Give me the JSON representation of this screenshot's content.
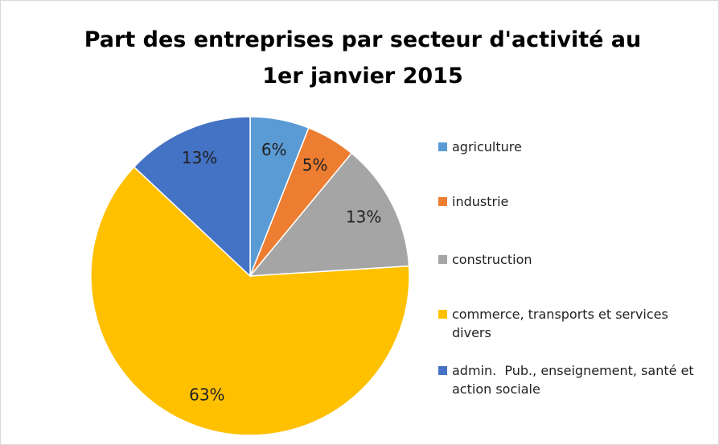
{
  "chart_data": {
    "type": "pie",
    "title": "Part des entreprises par secteur d'activité au 1er janvier 2015",
    "categories": [
      "agriculture",
      "industrie",
      "construction",
      "commerce, transports et services divers",
      "admin.  Pub., enseignement, santé et action sociale"
    ],
    "values": [
      6,
      5,
      13,
      63,
      13
    ],
    "value_labels": [
      "6%",
      "5%",
      "13%",
      "63%",
      "13%"
    ],
    "colors": [
      "#5b9bd5",
      "#ed7d31",
      "#a5a5a5",
      "#ffc000",
      "#4472c4"
    ],
    "legend": "right"
  }
}
